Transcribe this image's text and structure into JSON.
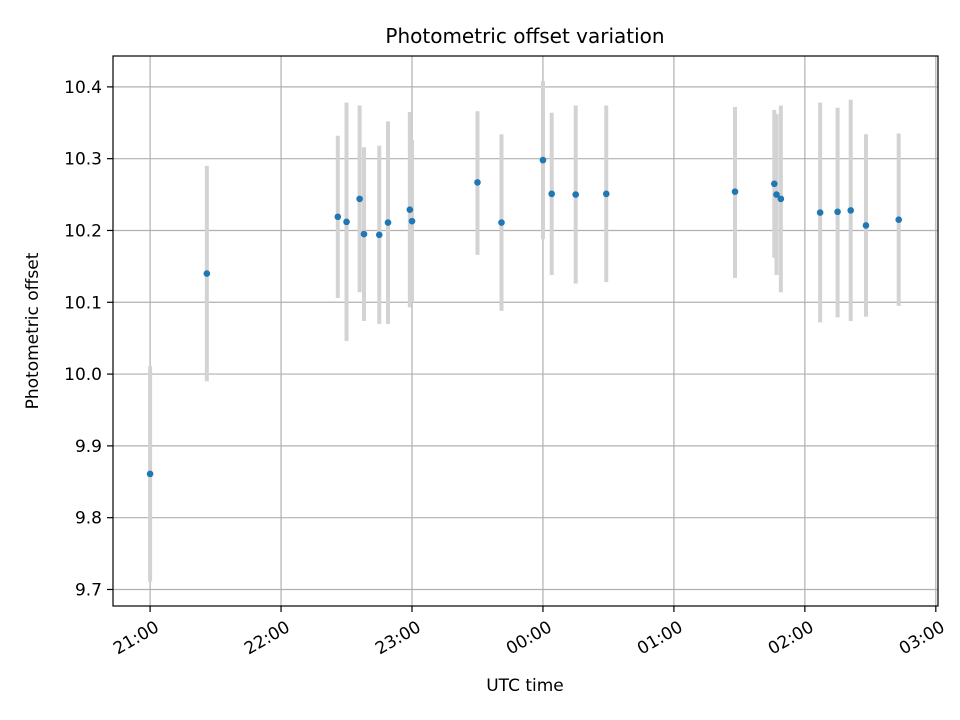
{
  "chart_data": {
    "type": "scatter",
    "title": "Photometric offset variation",
    "xlabel": "UTC time",
    "ylabel": "Photometric offset",
    "x_tick_labels": [
      "21:00",
      "22:00",
      "23:00",
      "00:00",
      "01:00",
      "02:00",
      "03:00"
    ],
    "y_tick_labels": [
      "9.7",
      "9.8",
      "9.9",
      "10.0",
      "10.1",
      "10.2",
      "10.3",
      "10.4"
    ],
    "x_ticks": [
      "21:00",
      "22:00",
      "23:00",
      "24:00",
      "25:00",
      "26:00",
      "27:00"
    ],
    "y_ticks": [
      9.7,
      9.8,
      9.9,
      10.0,
      10.1,
      10.2,
      10.3,
      10.4
    ],
    "xlim": [
      "20:43",
      "27:01"
    ],
    "ylim": [
      9.677,
      10.443
    ],
    "grid": true,
    "point_color": "#1f77b4",
    "errorbar_color": "#d3d3d3",
    "points": [
      {
        "x": "21:00",
        "y": 9.861,
        "low": 9.711,
        "high": 10.011
      },
      {
        "x": "21:26",
        "y": 10.14,
        "low": 9.99,
        "high": 10.29
      },
      {
        "x": "22:26",
        "y": 10.219,
        "low": 10.106,
        "high": 10.332
      },
      {
        "x": "22:30",
        "y": 10.212,
        "low": 10.046,
        "high": 10.378
      },
      {
        "x": "22:36",
        "y": 10.244,
        "low": 10.114,
        "high": 10.374
      },
      {
        "x": "22:38",
        "y": 10.195,
        "low": 10.074,
        "high": 10.316
      },
      {
        "x": "22:45",
        "y": 10.194,
        "low": 10.07,
        "high": 10.318
      },
      {
        "x": "22:49",
        "y": 10.211,
        "low": 10.07,
        "high": 10.352
      },
      {
        "x": "22:59",
        "y": 10.229,
        "low": 10.093,
        "high": 10.365
      },
      {
        "x": "23:00",
        "y": 10.213,
        "low": 10.1,
        "high": 10.326
      },
      {
        "x": "23:30",
        "y": 10.267,
        "low": 10.166,
        "high": 10.366
      },
      {
        "x": "23:41",
        "y": 10.211,
        "low": 10.088,
        "high": 10.334
      },
      {
        "x": "24:00",
        "y": 10.298,
        "low": 10.188,
        "high": 10.408
      },
      {
        "x": "24:04",
        "y": 10.251,
        "low": 10.138,
        "high": 10.364
      },
      {
        "x": "24:15",
        "y": 10.25,
        "low": 10.126,
        "high": 10.374
      },
      {
        "x": "24:29",
        "y": 10.251,
        "low": 10.128,
        "high": 10.374
      },
      {
        "x": "25:28",
        "y": 10.254,
        "low": 10.134,
        "high": 10.372
      },
      {
        "x": "25:46",
        "y": 10.265,
        "low": 10.162,
        "high": 10.368
      },
      {
        "x": "25:47",
        "y": 10.25,
        "low": 10.138,
        "high": 10.362
      },
      {
        "x": "25:49",
        "y": 10.244,
        "low": 10.114,
        "high": 10.374
      },
      {
        "x": "26:07",
        "y": 10.225,
        "low": 10.072,
        "high": 10.378
      },
      {
        "x": "26:15",
        "y": 10.226,
        "low": 10.079,
        "high": 10.371
      },
      {
        "x": "26:21",
        "y": 10.228,
        "low": 10.074,
        "high": 10.382
      },
      {
        "x": "26:28",
        "y": 10.207,
        "low": 10.08,
        "high": 10.334
      },
      {
        "x": "26:43",
        "y": 10.215,
        "low": 10.095,
        "high": 10.335
      }
    ]
  }
}
